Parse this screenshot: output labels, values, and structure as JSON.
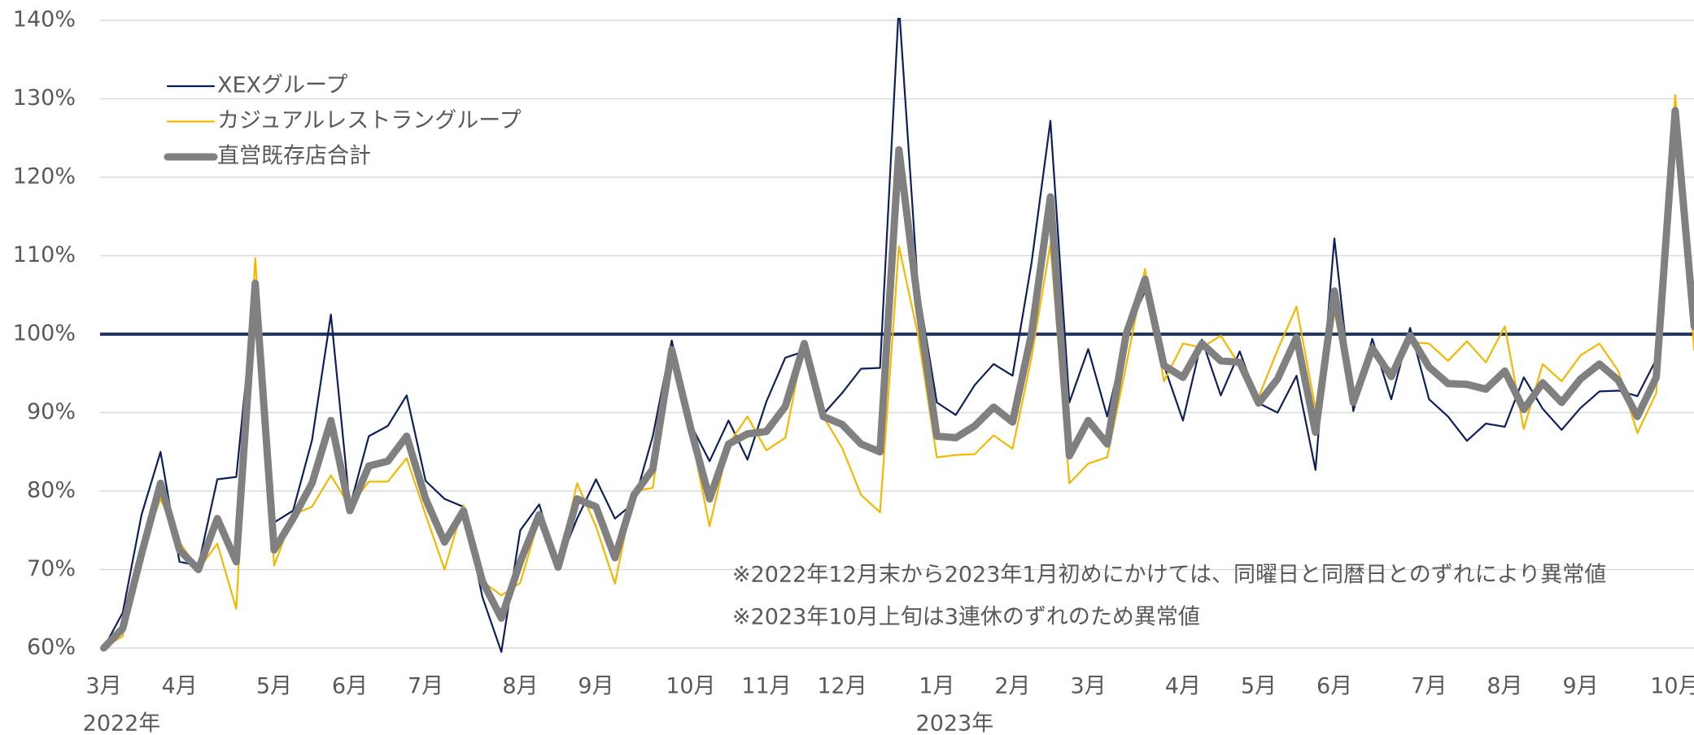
{
  "chart_data": {
    "type": "line",
    "categories": [
      "3月",
      null,
      null,
      null,
      "4月",
      null,
      null,
      null,
      null,
      "5月",
      null,
      null,
      null,
      "6月",
      null,
      null,
      null,
      "7月",
      null,
      null,
      null,
      null,
      "8月",
      null,
      null,
      null,
      "9月",
      null,
      null,
      null,
      null,
      "10月",
      null,
      null,
      null,
      "11月",
      null,
      null,
      null,
      "12月",
      null,
      null,
      null,
      null,
      "1月",
      null,
      null,
      null,
      "2月",
      null,
      null,
      null,
      "3月",
      null,
      null,
      null,
      null,
      "4月",
      null,
      null,
      null,
      "5月",
      null,
      null,
      null,
      "6月",
      null,
      null,
      null,
      null,
      "7月",
      null,
      null,
      null,
      "8月",
      null,
      null,
      null,
      "9月",
      null,
      null,
      null,
      null,
      "10月",
      null
    ],
    "category_years": [
      "2022年",
      null,
      null,
      null,
      null,
      null,
      null,
      null,
      null,
      null,
      null,
      null,
      null,
      null,
      null,
      null,
      null,
      null,
      null,
      null,
      null,
      null,
      null,
      null,
      null,
      null,
      null,
      null,
      null,
      null,
      null,
      null,
      null,
      null,
      null,
      null,
      null,
      null,
      null,
      null,
      null,
      null,
      null,
      null,
      "2023年",
      null,
      null,
      null,
      null,
      null,
      null,
      null,
      null,
      null,
      null,
      null,
      null,
      null,
      null,
      null,
      null,
      null,
      null,
      null,
      null,
      null,
      null,
      null,
      null,
      null,
      null,
      null,
      null,
      null,
      null,
      null,
      null,
      null,
      null,
      null,
      null,
      null,
      null,
      null,
      null
    ],
    "series": [
      {
        "name": "XEXグループ",
        "color": "#0d1f5c",
        "values": [
          60,
          64.5,
          77,
          85,
          71,
          70.5,
          81.5,
          81.8,
          106,
          76,
          77.5,
          86.5,
          102.5,
          78,
          87,
          88.3,
          92.2,
          81.3,
          79,
          78,
          66.5,
          59.5,
          75,
          78.3,
          70.5,
          76.5,
          81.5,
          76.5,
          78.5,
          87,
          99.2,
          88.5,
          83.8,
          89,
          84,
          91.4,
          97,
          97.8,
          89.8,
          92.5,
          95.6,
          95.7,
          142,
          106,
          91.3,
          89.7,
          93.5,
          96.2,
          94.7,
          109,
          127.2,
          91.3,
          98.1,
          89.5,
          100,
          105.5,
          96,
          89,
          99.3,
          92.2,
          97.8,
          91.2,
          90,
          94.7,
          82.7,
          112.2,
          90.2,
          99.4,
          91.7,
          100.8,
          91.7,
          89.5,
          86.4,
          88.6,
          88.2,
          94.5,
          90.5,
          87.8,
          90.6,
          92.7,
          92.8,
          92.1,
          96.8,
          126,
          102
        ]
      },
      {
        "name": "カジュアルレストラングループ",
        "color": "#f5b800",
        "values": [
          60,
          61.5,
          72.5,
          79,
          73.5,
          70,
          73.3,
          65,
          109.7,
          70.5,
          77,
          78,
          82,
          78,
          81.2,
          81.2,
          84.2,
          77,
          70,
          78.2,
          68.5,
          66.7,
          68.3,
          76.5,
          70.5,
          81,
          75.5,
          68.2,
          80,
          80.4,
          97.5,
          87.5,
          75.5,
          86,
          89.5,
          85.2,
          86.8,
          99.2,
          89.5,
          85.5,
          79.5,
          77.3,
          111.2,
          100,
          84.3,
          84.6,
          84.7,
          87.1,
          85.4,
          97,
          111.5,
          81,
          83.5,
          84.3,
          96,
          108.3,
          94,
          98.8,
          98.3,
          99.8,
          96,
          92,
          98,
          103.5,
          90.5,
          102.8,
          91.8,
          97.5,
          95.5,
          99,
          98.8,
          96.6,
          99.1,
          96.4,
          101,
          87.9,
          96.2,
          94,
          97.3,
          98.8,
          95.3,
          87.4,
          92.5,
          130.5,
          98
        ]
      },
      {
        "name": "直営既存店合計",
        "color": "#808080",
        "values": [
          60,
          62.5,
          72,
          81,
          72.5,
          70,
          76.5,
          71,
          106.5,
          72.5,
          76.5,
          81,
          89,
          77.5,
          83.2,
          83.8,
          87,
          79,
          73.5,
          77.5,
          68.5,
          63.8,
          71,
          77,
          70.3,
          79,
          78,
          71.5,
          79.5,
          82.8,
          98,
          88,
          79,
          86,
          87.3,
          87.6,
          90.8,
          98.8,
          89.5,
          88.5,
          86,
          85,
          123.5,
          104,
          87,
          86.8,
          88.3,
          90.7,
          88.8,
          100,
          117.5,
          84.5,
          89,
          86,
          100,
          107,
          96,
          94.5,
          98.8,
          96.6,
          96.4,
          91.2,
          94.3,
          99.6,
          87.5,
          105.5,
          91.3,
          98.2,
          94.6,
          99.8,
          95.8,
          93.7,
          93.6,
          93,
          95.3,
          90.4,
          93.8,
          91.3,
          94.3,
          96.2,
          94.1,
          89.5,
          94.5,
          128.5,
          101
        ]
      }
    ],
    "ylim": [
      60,
      140
    ],
    "yticks": [
      {
        "value": 60,
        "label": "60%"
      },
      {
        "value": 70,
        "label": "70%"
      },
      {
        "value": 80,
        "label": "80%"
      },
      {
        "value": 90,
        "label": "90%"
      },
      {
        "value": 100,
        "label": "100%"
      },
      {
        "value": 110,
        "label": "110%"
      },
      {
        "value": 120,
        "label": "120%"
      },
      {
        "value": 130,
        "label": "130%"
      },
      {
        "value": 140,
        "label": "140%"
      }
    ],
    "grid": true,
    "reference_line": {
      "value": 100,
      "color": "#1f3864"
    },
    "legend": "top-left",
    "annotations": [
      "※2022年12月末から2023年1月初めにかけては、同曜日と同暦日とのずれにより異常値",
      "※2023年10月上旬は3連休のずれのため異常値"
    ]
  }
}
